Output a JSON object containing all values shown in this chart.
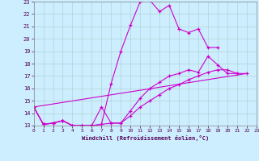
{
  "xlabel": "Windchill (Refroidissement éolien,°C)",
  "background_color": "#cceeff",
  "grid_color": "#aacccc",
  "line_color": "#cc00cc",
  "xlim": [
    0,
    23
  ],
  "ylim": [
    13,
    23
  ],
  "xticks": [
    0,
    1,
    2,
    3,
    4,
    5,
    6,
    7,
    8,
    9,
    10,
    11,
    12,
    13,
    14,
    15,
    16,
    17,
    18,
    19,
    20,
    21,
    22,
    23
  ],
  "yticks": [
    13,
    14,
    15,
    16,
    17,
    18,
    19,
    20,
    21,
    22,
    23
  ],
  "lines": [
    {
      "x": [
        0,
        1,
        2,
        3,
        4,
        5,
        6,
        7,
        8,
        9,
        10,
        11,
        12,
        13,
        14,
        15,
        16,
        17,
        18,
        19
      ],
      "y": [
        14.5,
        13.1,
        13.2,
        13.4,
        13.0,
        13.0,
        13.0,
        13.1,
        16.4,
        19.0,
        21.1,
        23.0,
        23.1,
        22.2,
        22.7,
        20.8,
        20.5,
        20.8,
        19.3,
        19.3
      ],
      "marker": true
    },
    {
      "x": [
        0,
        1,
        2,
        3,
        4,
        5,
        6,
        7,
        8,
        9,
        10,
        11,
        12,
        13,
        14,
        15,
        16,
        17,
        18,
        19,
        20,
        21
      ],
      "y": [
        14.5,
        13.1,
        13.2,
        13.4,
        13.0,
        13.0,
        13.0,
        14.5,
        13.2,
        13.2,
        14.2,
        15.2,
        16.0,
        16.5,
        17.0,
        17.2,
        17.5,
        17.3,
        18.6,
        17.9,
        17.2,
        17.2
      ],
      "marker": true
    },
    {
      "x": [
        0,
        1,
        2,
        3,
        4,
        5,
        6,
        7,
        8,
        9,
        10,
        11,
        12,
        13,
        14,
        15,
        16,
        17,
        18,
        19,
        20,
        21,
        22
      ],
      "y": [
        14.5,
        13.1,
        13.2,
        13.4,
        13.0,
        13.0,
        13.0,
        13.1,
        13.2,
        13.2,
        13.8,
        14.5,
        15.0,
        15.5,
        16.0,
        16.3,
        16.7,
        17.0,
        17.3,
        17.5,
        17.5,
        17.2,
        17.2
      ],
      "marker": true
    },
    {
      "x": [
        0,
        22
      ],
      "y": [
        14.5,
        17.2
      ],
      "marker": false
    }
  ]
}
